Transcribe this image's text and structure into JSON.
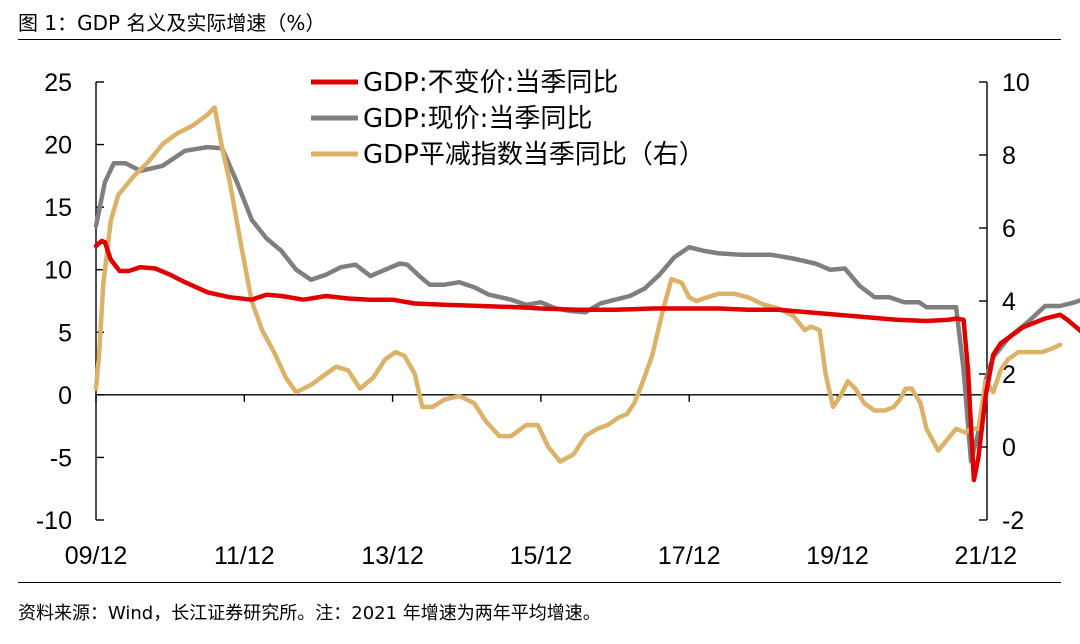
{
  "figure": {
    "title": "图 1：GDP 名义及实际增速（%）",
    "source": "资料来源：Wind，长江证券研究所。注：2021 年增速为两年平均增速。"
  },
  "chart_data": {
    "type": "line",
    "title": "GDP 名义及实际增速（%）",
    "xlabel": "",
    "ylabel": "",
    "x_ticks": [
      "09/12",
      "11/12",
      "13/12",
      "15/12",
      "17/12",
      "19/12",
      "21/12"
    ],
    "left_axis": {
      "ylim": [
        -10,
        25
      ],
      "ticks": [
        -10,
        -5,
        0,
        5,
        10,
        15,
        20,
        25
      ]
    },
    "right_axis": {
      "ylim": [
        -2,
        10
      ],
      "ticks": [
        -2,
        0,
        2,
        4,
        6,
        8,
        10
      ]
    },
    "legend_position": "top-center",
    "series": [
      {
        "name": "GDP:不变价:当季同比",
        "axis": "left",
        "color": "#e00000",
        "points": [
          [
            0,
            11.9
          ],
          [
            0.04,
            12.3
          ],
          [
            0.06,
            12.2
          ],
          [
            0.1,
            10.8
          ],
          [
            0.16,
            9.9
          ],
          [
            0.22,
            9.9
          ],
          [
            0.3,
            10.2
          ],
          [
            0.4,
            10.1
          ],
          [
            0.5,
            9.6
          ],
          [
            0.6,
            9.0
          ],
          [
            0.75,
            8.2
          ],
          [
            0.9,
            7.8
          ],
          [
            1.05,
            7.6
          ],
          [
            1.15,
            8.0
          ],
          [
            1.25,
            7.9
          ],
          [
            1.4,
            7.6
          ],
          [
            1.55,
            7.9
          ],
          [
            1.7,
            7.7
          ],
          [
            1.85,
            7.6
          ],
          [
            2.0,
            7.6
          ],
          [
            2.15,
            7.3
          ],
          [
            2.35,
            7.2
          ],
          [
            2.6,
            7.1
          ],
          [
            2.85,
            7.0
          ],
          [
            3.0,
            6.9
          ],
          [
            3.25,
            6.8
          ],
          [
            3.5,
            6.8
          ],
          [
            3.75,
            6.9
          ],
          [
            4.0,
            6.9
          ],
          [
            4.2,
            6.9
          ],
          [
            4.4,
            6.8
          ],
          [
            4.6,
            6.8
          ],
          [
            4.8,
            6.6
          ],
          [
            5.0,
            6.4
          ],
          [
            5.2,
            6.2
          ],
          [
            5.4,
            6.0
          ],
          [
            5.6,
            5.9
          ],
          [
            5.75,
            6.0
          ],
          [
            5.8,
            6.1
          ],
          [
            5.85,
            6.0
          ],
          [
            5.88,
            2.0
          ],
          [
            5.92,
            -6.8
          ],
          [
            5.95,
            -5.0
          ],
          [
            6.0,
            0.0
          ],
          [
            6.05,
            3.2
          ],
          [
            6.1,
            4.1
          ],
          [
            6.25,
            5.4
          ],
          [
            6.4,
            6.1
          ],
          [
            6.5,
            6.4
          ],
          [
            6.55,
            6.0
          ],
          [
            6.65,
            5.0
          ],
          [
            6.75,
            5.3
          ],
          [
            6.85,
            5.5
          ],
          [
            6.95,
            4.9
          ],
          [
            7.05,
            4.9
          ],
          [
            7.15,
            5.2
          ],
          [
            7.25,
            5.3
          ]
        ]
      },
      {
        "name": "GDP:现价:当季同比",
        "axis": "left",
        "color": "#7f7f7f",
        "points": [
          [
            0,
            13.5
          ],
          [
            0.06,
            17.0
          ],
          [
            0.12,
            18.5
          ],
          [
            0.2,
            18.5
          ],
          [
            0.3,
            17.9
          ],
          [
            0.45,
            18.3
          ],
          [
            0.6,
            19.5
          ],
          [
            0.75,
            19.8
          ],
          [
            0.85,
            19.7
          ],
          [
            0.95,
            17.0
          ],
          [
            1.05,
            14.0
          ],
          [
            1.15,
            12.5
          ],
          [
            1.25,
            11.5
          ],
          [
            1.35,
            10.0
          ],
          [
            1.45,
            9.2
          ],
          [
            1.55,
            9.6
          ],
          [
            1.65,
            10.2
          ],
          [
            1.75,
            10.4
          ],
          [
            1.85,
            9.5
          ],
          [
            1.95,
            10.0
          ],
          [
            2.05,
            10.5
          ],
          [
            2.1,
            10.4
          ],
          [
            2.18,
            9.5
          ],
          [
            2.25,
            8.8
          ],
          [
            2.35,
            8.8
          ],
          [
            2.45,
            9.0
          ],
          [
            2.55,
            8.6
          ],
          [
            2.65,
            8.0
          ],
          [
            2.8,
            7.6
          ],
          [
            2.9,
            7.2
          ],
          [
            3.0,
            7.4
          ],
          [
            3.1,
            6.9
          ],
          [
            3.2,
            6.7
          ],
          [
            3.3,
            6.6
          ],
          [
            3.4,
            7.3
          ],
          [
            3.5,
            7.6
          ],
          [
            3.6,
            7.9
          ],
          [
            3.7,
            8.5
          ],
          [
            3.8,
            9.6
          ],
          [
            3.9,
            11.0
          ],
          [
            4.0,
            11.8
          ],
          [
            4.1,
            11.5
          ],
          [
            4.2,
            11.3
          ],
          [
            4.35,
            11.2
          ],
          [
            4.55,
            11.2
          ],
          [
            4.7,
            10.9
          ],
          [
            4.85,
            10.5
          ],
          [
            4.95,
            10.0
          ],
          [
            5.05,
            10.1
          ],
          [
            5.15,
            8.7
          ],
          [
            5.25,
            7.8
          ],
          [
            5.35,
            7.8
          ],
          [
            5.45,
            7.4
          ],
          [
            5.55,
            7.4
          ],
          [
            5.6,
            7.0
          ],
          [
            5.75,
            7.0
          ],
          [
            5.8,
            7.0
          ],
          [
            5.85,
            2.0
          ],
          [
            5.9,
            -5.3
          ],
          [
            5.95,
            -3.0
          ],
          [
            6.0,
            1.2
          ],
          [
            6.05,
            3.0
          ],
          [
            6.15,
            4.5
          ],
          [
            6.3,
            6.0
          ],
          [
            6.4,
            7.1
          ],
          [
            6.5,
            7.1
          ],
          [
            6.6,
            7.4
          ],
          [
            6.7,
            7.8
          ],
          [
            6.75,
            8.2
          ],
          [
            6.85,
            8.3
          ],
          [
            6.95,
            7.6
          ],
          [
            7.05,
            7.8
          ],
          [
            7.15,
            8.0
          ],
          [
            7.25,
            8.3
          ]
        ]
      },
      {
        "name": "GDP平减指数当季同比（右）",
        "axis": "right",
        "color": "#dcb268",
        "points": [
          [
            0,
            1.6
          ],
          [
            0.02,
            2.5
          ],
          [
            0.05,
            4.5
          ],
          [
            0.1,
            6.2
          ],
          [
            0.15,
            6.9
          ],
          [
            0.25,
            7.4
          ],
          [
            0.35,
            7.8
          ],
          [
            0.45,
            8.3
          ],
          [
            0.55,
            8.6
          ],
          [
            0.65,
            8.8
          ],
          [
            0.75,
            9.1
          ],
          [
            0.8,
            9.3
          ],
          [
            0.85,
            8.2
          ],
          [
            0.9,
            7.3
          ],
          [
            0.98,
            5.5
          ],
          [
            1.05,
            4.0
          ],
          [
            1.12,
            3.2
          ],
          [
            1.2,
            2.6
          ],
          [
            1.28,
            1.9
          ],
          [
            1.35,
            1.5
          ],
          [
            1.45,
            1.7
          ],
          [
            1.55,
            2.0
          ],
          [
            1.62,
            2.2
          ],
          [
            1.7,
            2.1
          ],
          [
            1.78,
            1.6
          ],
          [
            1.87,
            1.9
          ],
          [
            1.95,
            2.4
          ],
          [
            2.02,
            2.6
          ],
          [
            2.08,
            2.5
          ],
          [
            2.15,
            2.0
          ],
          [
            2.2,
            1.1
          ],
          [
            2.27,
            1.1
          ],
          [
            2.35,
            1.3
          ],
          [
            2.45,
            1.4
          ],
          [
            2.55,
            1.2
          ],
          [
            2.63,
            0.7
          ],
          [
            2.72,
            0.3
          ],
          [
            2.8,
            0.3
          ],
          [
            2.9,
            0.6
          ],
          [
            2.98,
            0.6
          ],
          [
            3.05,
            0.0
          ],
          [
            3.13,
            -0.4
          ],
          [
            3.22,
            -0.2
          ],
          [
            3.3,
            0.3
          ],
          [
            3.38,
            0.5
          ],
          [
            3.45,
            0.6
          ],
          [
            3.52,
            0.8
          ],
          [
            3.58,
            0.9
          ],
          [
            3.63,
            1.2
          ],
          [
            3.68,
            1.7
          ],
          [
            3.75,
            2.5
          ],
          [
            3.82,
            3.7
          ],
          [
            3.88,
            4.6
          ],
          [
            3.95,
            4.5
          ],
          [
            4.0,
            4.1
          ],
          [
            4.05,
            4.0
          ],
          [
            4.12,
            4.1
          ],
          [
            4.2,
            4.2
          ],
          [
            4.3,
            4.2
          ],
          [
            4.4,
            4.1
          ],
          [
            4.5,
            3.9
          ],
          [
            4.6,
            3.8
          ],
          [
            4.7,
            3.6
          ],
          [
            4.78,
            3.2
          ],
          [
            4.82,
            3.3
          ],
          [
            4.88,
            3.2
          ],
          [
            4.92,
            2.0
          ],
          [
            4.97,
            1.1
          ],
          [
            5.02,
            1.4
          ],
          [
            5.07,
            1.8
          ],
          [
            5.12,
            1.6
          ],
          [
            5.18,
            1.2
          ],
          [
            5.25,
            1.0
          ],
          [
            5.32,
            1.0
          ],
          [
            5.38,
            1.1
          ],
          [
            5.42,
            1.3
          ],
          [
            5.46,
            1.6
          ],
          [
            5.5,
            1.6
          ],
          [
            5.56,
            1.2
          ],
          [
            5.6,
            0.5
          ],
          [
            5.64,
            0.2
          ],
          [
            5.68,
            -0.1
          ],
          [
            5.74,
            0.2
          ],
          [
            5.8,
            0.5
          ],
          [
            5.86,
            0.4
          ],
          [
            5.9,
            0.5
          ],
          [
            5.95,
            0.5
          ],
          [
            6.0,
            1.8
          ],
          [
            6.05,
            1.5
          ],
          [
            6.1,
            2.1
          ],
          [
            6.15,
            2.4
          ],
          [
            6.22,
            2.6
          ],
          [
            6.3,
            2.6
          ],
          [
            6.38,
            2.6
          ],
          [
            6.45,
            2.7
          ],
          [
            6.5,
            2.8
          ]
        ]
      }
    ]
  }
}
